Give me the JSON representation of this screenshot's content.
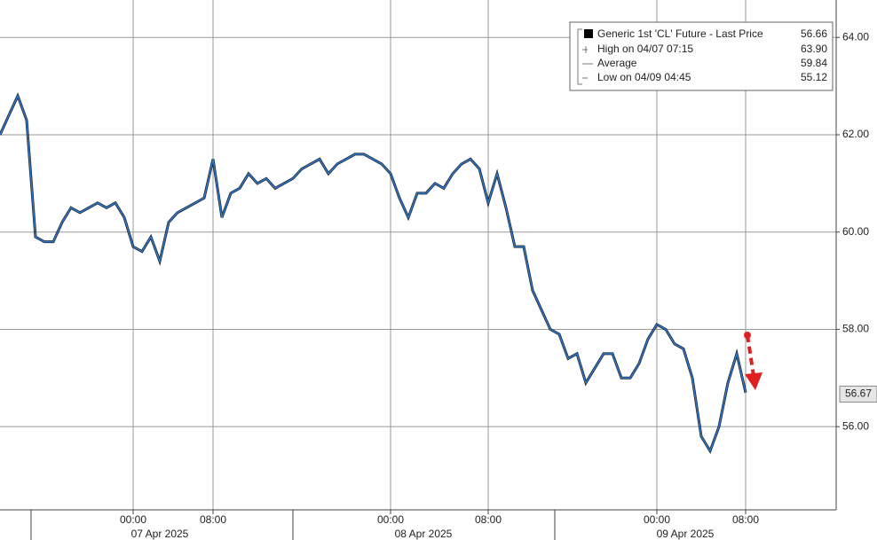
{
  "chart_data": {
    "type": "line",
    "categories": [
      null,
      null,
      null,
      null,
      null,
      null,
      null,
      null,
      null,
      null,
      null,
      null,
      null,
      null,
      null,
      "00:00",
      null,
      null,
      null,
      null,
      null,
      null,
      null,
      null,
      "08:00",
      null,
      null,
      null,
      null,
      null,
      null,
      null,
      null,
      null,
      null,
      null,
      null,
      null,
      null,
      null,
      null,
      null,
      null,
      null,
      "00:00",
      null,
      null,
      null,
      null,
      null,
      null,
      null,
      null,
      null,
      null,
      "08:00",
      null,
      null,
      null,
      null,
      null,
      null,
      null,
      null,
      null,
      null,
      null,
      null,
      null,
      null,
      null,
      null,
      null,
      null,
      "00:00",
      null,
      null,
      null,
      null,
      null,
      null,
      null,
      null,
      null,
      "08:00"
    ],
    "date_labels": [
      "07 Apr 2025",
      "08 Apr 2025",
      "09 Apr 2025"
    ],
    "series": [
      {
        "name": "Generic 1st 'CL' Future - Last Price",
        "color": "#2a78d0",
        "values": [
          62.0,
          62.4,
          62.8,
          62.3,
          59.9,
          59.8,
          59.8,
          60.2,
          60.5,
          60.4,
          60.5,
          60.6,
          60.5,
          60.6,
          60.3,
          59.7,
          59.6,
          59.9,
          59.4,
          60.2,
          60.4,
          60.5,
          60.6,
          60.7,
          61.5,
          60.3,
          60.8,
          60.9,
          61.2,
          61.0,
          61.1,
          60.9,
          61.0,
          61.1,
          61.3,
          61.4,
          61.5,
          61.2,
          61.4,
          61.5,
          61.6,
          61.6,
          61.5,
          61.4,
          61.2,
          60.7,
          60.3,
          60.8,
          60.8,
          61.0,
          60.9,
          61.2,
          61.4,
          61.5,
          61.3,
          60.6,
          61.2,
          60.5,
          59.7,
          59.7,
          58.8,
          58.4,
          58.0,
          57.9,
          57.4,
          57.5,
          56.9,
          57.2,
          57.5,
          57.5,
          57.0,
          57.0,
          57.3,
          57.8,
          58.1,
          58.0,
          57.7,
          57.6,
          57.0,
          55.8,
          55.5,
          56.0,
          56.9,
          57.5,
          56.7
        ]
      }
    ],
    "legend": {
      "last": "56.66",
      "rows": [
        {
          "label": "High on 04/07 07:15",
          "value": "63.90"
        },
        {
          "label": "Average",
          "value": "59.84"
        },
        {
          "label": "Low on 04/09 04:45",
          "value": "55.12"
        }
      ]
    },
    "last_price": {
      "value": 56.67,
      "label": "56.67"
    },
    "ylim": [
      54.29,
      64.77
    ],
    "yticks": [
      {
        "value": 56,
        "label": "56.00"
      },
      {
        "value": 58,
        "label": "58.00"
      },
      {
        "value": 60,
        "label": "60.00"
      },
      {
        "value": 62,
        "label": "62.00"
      },
      {
        "value": 64,
        "label": "64.00"
      }
    ],
    "grid": true
  }
}
